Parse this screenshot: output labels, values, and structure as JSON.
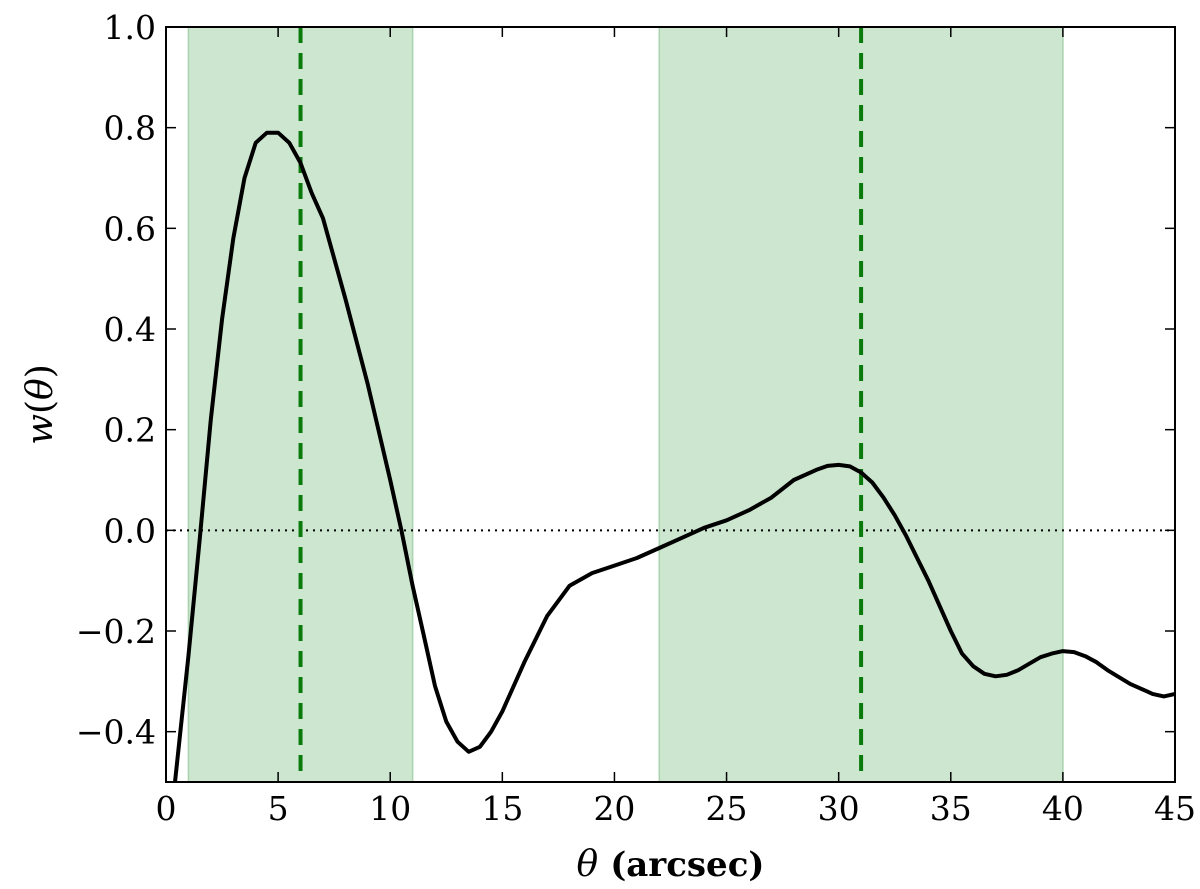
{
  "chart_data": {
    "type": "line",
    "title": "",
    "xlabel": {
      "symbol": "θ",
      "unit": "(arcsec)"
    },
    "ylabel": {
      "func": "w",
      "open": "(",
      "symbol": "θ",
      "close": ")"
    },
    "xlim": [
      0,
      45
    ],
    "ylim": [
      -0.5,
      1.0
    ],
    "x_ticks": [
      0,
      5,
      10,
      15,
      20,
      25,
      30,
      35,
      40,
      45
    ],
    "x_tick_labels": [
      "0",
      "5",
      "10",
      "15",
      "20",
      "25",
      "30",
      "35",
      "40",
      "45"
    ],
    "y_ticks": [
      -0.4,
      -0.2,
      0.0,
      0.2,
      0.4,
      0.6,
      0.8,
      1.0
    ],
    "y_tick_labels": [
      "−0.4",
      "−0.2",
      "0.0",
      "0.2",
      "0.4",
      "0.6",
      "0.8",
      "1.0"
    ],
    "grid": false,
    "legend": "none",
    "colors": {
      "curve": "#000000",
      "band": "#cde6d0",
      "band_edge": "#a9d3ad",
      "marker": "#0a7a0a",
      "zero_line": "#000000"
    },
    "shaded_regions": [
      {
        "x0": 1,
        "x1": 11
      },
      {
        "x0": 22,
        "x1": 40
      }
    ],
    "vertical_lines": [
      {
        "x": 6,
        "style": "dashed"
      },
      {
        "x": 31,
        "style": "dashed"
      }
    ],
    "reference_lines": [
      {
        "y": 0.0,
        "style": "dotted"
      }
    ],
    "series": [
      {
        "x": [
          0.4,
          1.0,
          1.5,
          2.0,
          2.5,
          3.0,
          3.5,
          4.0,
          4.5,
          5.0,
          5.5,
          6.0,
          6.5,
          7.0,
          8.0,
          9.0,
          10.0,
          10.5,
          11.0,
          11.5,
          12.0,
          12.5,
          13.0,
          13.5,
          14.0,
          14.5,
          15.0,
          16.0,
          17.0,
          18.0,
          19.0,
          20.0,
          21.0,
          22.0,
          23.0,
          24.0,
          25.0,
          26.0,
          27.0,
          28.0,
          29.0,
          29.5,
          30.0,
          30.5,
          31.0,
          31.5,
          32.0,
          32.5,
          33.0,
          33.5,
          34.0,
          35.0,
          35.5,
          36.0,
          36.5,
          37.0,
          37.5,
          38.0,
          38.5,
          39.0,
          39.5,
          40.0,
          40.5,
          41.0,
          41.5,
          42.0,
          43.0,
          44.0,
          44.5,
          45.0
        ],
        "y": [
          -0.5,
          -0.25,
          -0.02,
          0.22,
          0.42,
          0.58,
          0.7,
          0.77,
          0.79,
          0.79,
          0.77,
          0.73,
          0.67,
          0.62,
          0.46,
          0.29,
          0.1,
          0.0,
          -0.11,
          -0.21,
          -0.31,
          -0.38,
          -0.42,
          -0.44,
          -0.43,
          -0.4,
          -0.36,
          -0.26,
          -0.17,
          -0.11,
          -0.085,
          -0.07,
          -0.055,
          -0.035,
          -0.015,
          0.005,
          0.02,
          0.04,
          0.065,
          0.1,
          0.12,
          0.128,
          0.13,
          0.127,
          0.115,
          0.095,
          0.065,
          0.03,
          -0.01,
          -0.055,
          -0.1,
          -0.2,
          -0.245,
          -0.27,
          -0.285,
          -0.29,
          -0.287,
          -0.278,
          -0.265,
          -0.252,
          -0.245,
          -0.24,
          -0.242,
          -0.25,
          -0.262,
          -0.278,
          -0.305,
          -0.325,
          -0.33,
          -0.325
        ]
      }
    ]
  }
}
